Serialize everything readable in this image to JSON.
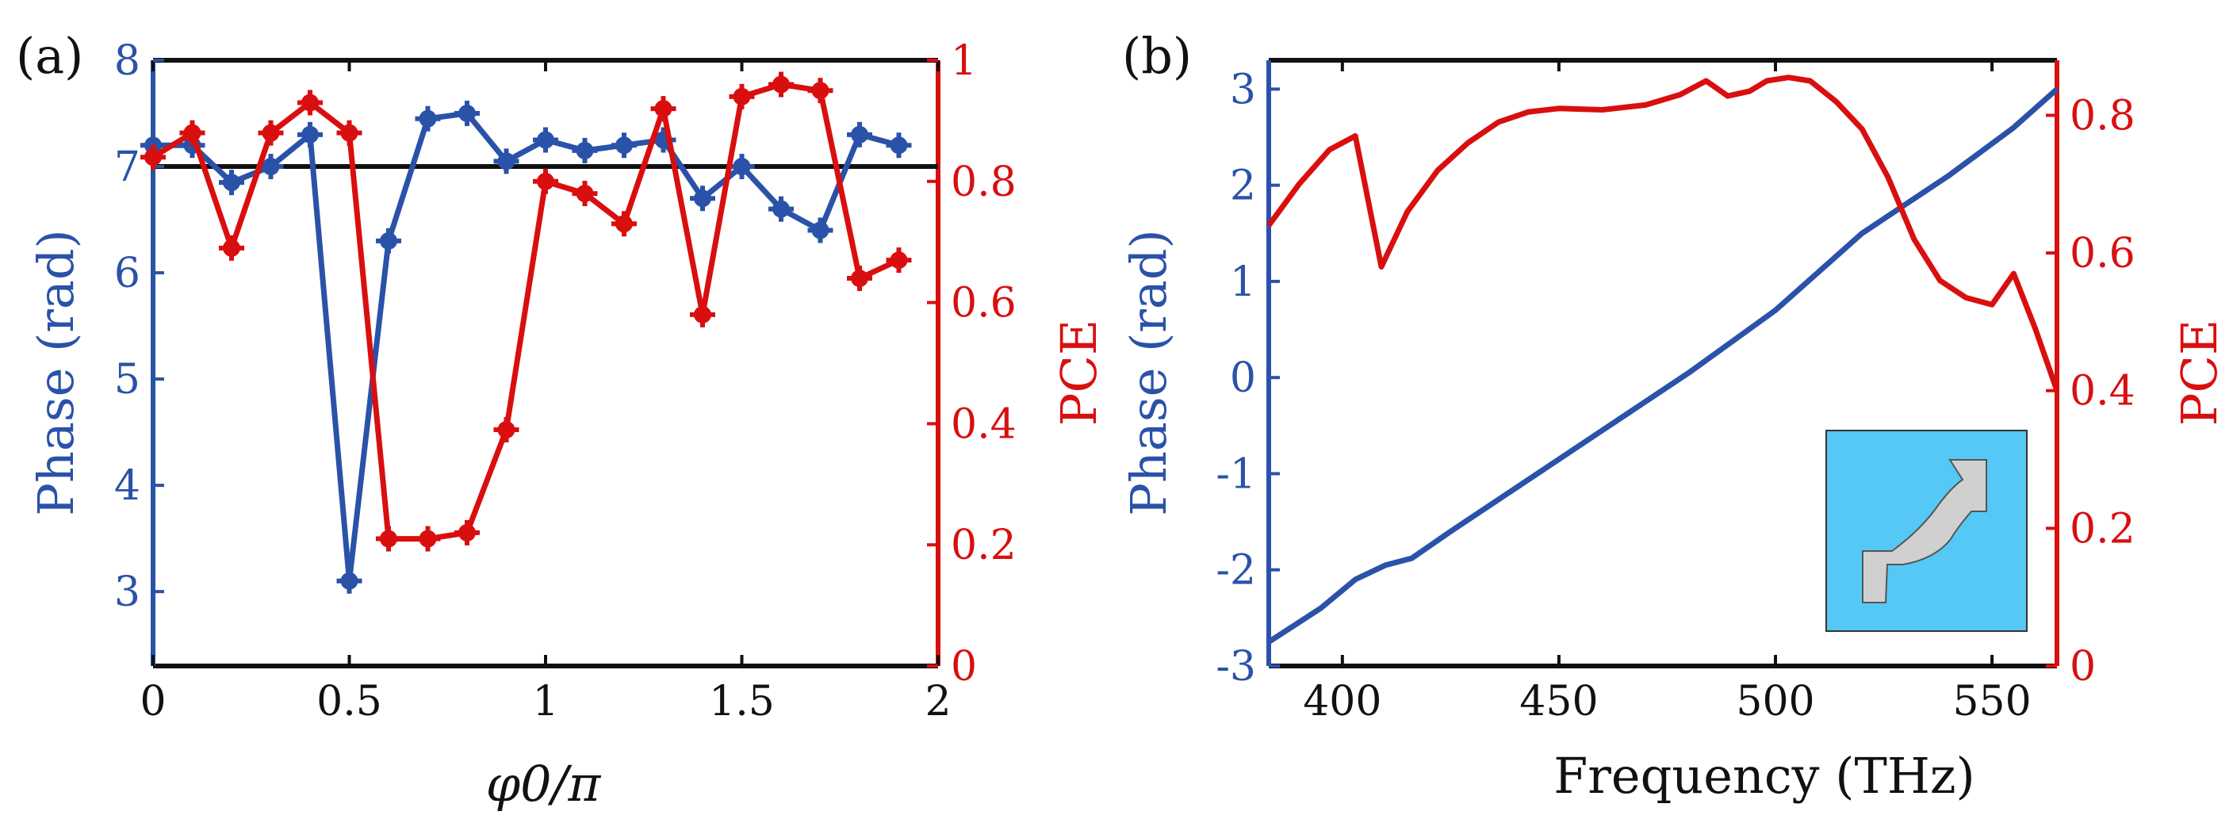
{
  "colors": {
    "phase": "#2a52a8",
    "pce": "#d90f0f",
    "axis": "#111111",
    "inset_bg": "#55c8f5",
    "inset_shape": "#d0d0d0"
  },
  "chart_data": [
    {
      "type": "line",
      "panel_label": "(a)",
      "xlabel": "φ0/π",
      "ylabel_left": "Phase (rad)",
      "ylabel_right": "PCE",
      "xlim": [
        0,
        2
      ],
      "ylim_left": [
        2.3,
        8
      ],
      "ylim_right": [
        0,
        1
      ],
      "xticks": [
        "0",
        "0.5",
        "1",
        "1.5",
        "2"
      ],
      "xtick_values": [
        0,
        0.5,
        1,
        1.5,
        2
      ],
      "yticks_left": [
        "3",
        "4",
        "5",
        "6",
        "7",
        "8"
      ],
      "ytick_left_values": [
        3,
        4,
        5,
        6,
        7,
        8
      ],
      "yticks_right": [
        "0",
        "0.2",
        "0.4",
        "0.6",
        "0.8",
        "1"
      ],
      "ytick_right_values": [
        0,
        0.2,
        0.4,
        0.6,
        0.8,
        1
      ],
      "reference_line": {
        "axis": "left",
        "y": 7
      },
      "x": [
        0,
        0.1,
        0.2,
        0.3,
        0.4,
        0.5,
        0.6,
        0.7,
        0.8,
        0.9,
        1.0,
        1.1,
        1.2,
        1.3,
        1.4,
        1.5,
        1.6,
        1.7,
        1.8,
        1.9
      ],
      "series": [
        {
          "name": "Phase",
          "axis": "left",
          "markers": true,
          "values": [
            7.2,
            7.2,
            6.85,
            7.0,
            7.3,
            3.1,
            6.3,
            7.45,
            7.5,
            7.05,
            7.25,
            7.15,
            7.2,
            7.25,
            6.7,
            7.0,
            6.6,
            6.4,
            7.3,
            7.2
          ]
        },
        {
          "name": "PCE",
          "axis": "right",
          "markers": true,
          "values": [
            0.84,
            0.88,
            0.69,
            0.88,
            0.93,
            0.88,
            0.21,
            0.21,
            0.22,
            0.39,
            0.8,
            0.78,
            0.73,
            0.92,
            0.58,
            0.94,
            0.96,
            0.95,
            0.64,
            0.67
          ]
        }
      ]
    },
    {
      "type": "line",
      "panel_label": "(b)",
      "xlabel": "Frequency (THz)",
      "ylabel_left": "Phase (rad)",
      "ylabel_right": "PCE",
      "xlim": [
        383,
        565
      ],
      "ylim_left": [
        -3,
        3.3
      ],
      "ylim_right": [
        0,
        0.88
      ],
      "xticks": [
        "400",
        "450",
        "500",
        "550"
      ],
      "xtick_values": [
        400,
        450,
        500,
        550
      ],
      "yticks_left": [
        "-3",
        "-2",
        "-1",
        "0",
        "1",
        "2",
        "3"
      ],
      "ytick_left_values": [
        -3,
        -2,
        -1,
        0,
        1,
        2,
        3
      ],
      "yticks_right": [
        "0",
        "0.2",
        "0.4",
        "0.6",
        "0.8"
      ],
      "ytick_right_values": [
        0,
        0.2,
        0.4,
        0.6,
        0.8
      ],
      "series": [
        {
          "name": "Phase",
          "axis": "left",
          "markers": false,
          "x": [
            383,
            395,
            403,
            410,
            416,
            425,
            440,
            460,
            480,
            500,
            520,
            540,
            555,
            565
          ],
          "values": [
            -2.75,
            -2.4,
            -2.1,
            -1.95,
            -1.88,
            -1.6,
            -1.15,
            -0.55,
            0.05,
            0.7,
            1.5,
            2.1,
            2.6,
            3.0
          ]
        },
        {
          "name": "PCE",
          "axis": "right",
          "markers": false,
          "x": [
            383,
            390,
            397,
            403,
            409,
            415,
            422,
            429,
            436,
            443,
            450,
            460,
            470,
            478,
            484,
            489,
            494,
            498,
            503,
            508,
            514,
            520,
            526,
            532,
            538,
            544,
            550,
            555,
            560,
            565
          ],
          "values": [
            0.64,
            0.7,
            0.75,
            0.77,
            0.58,
            0.66,
            0.72,
            0.76,
            0.79,
            0.805,
            0.81,
            0.808,
            0.815,
            0.83,
            0.85,
            0.828,
            0.835,
            0.85,
            0.855,
            0.85,
            0.82,
            0.78,
            0.71,
            0.62,
            0.56,
            0.535,
            0.525,
            0.57,
            0.49,
            0.4
          ]
        }
      ],
      "inset": "unit-cell-diagram"
    }
  ]
}
